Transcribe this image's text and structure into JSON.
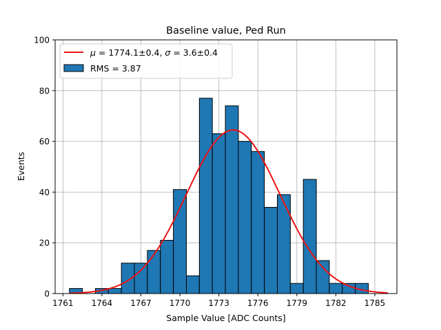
{
  "chart_data": {
    "type": "bar",
    "title": "Baseline value, Ped Run",
    "xlabel": "Sample Value [ADC Counts]",
    "ylabel": "Events",
    "xlim": [
      1760.4,
      1786.7
    ],
    "ylim": [
      0,
      100
    ],
    "xticks": [
      1761,
      1764,
      1767,
      1770,
      1773,
      1776,
      1779,
      1782,
      1785
    ],
    "yticks": [
      0,
      20,
      40,
      60,
      80,
      100
    ],
    "grid": true,
    "legend_position": "top-left",
    "bin_width": 1,
    "bins": [
      {
        "x": 1762,
        "count": 2
      },
      {
        "x": 1763,
        "count": 0
      },
      {
        "x": 1764,
        "count": 2
      },
      {
        "x": 1765,
        "count": 2
      },
      {
        "x": 1766,
        "count": 12
      },
      {
        "x": 1767,
        "count": 12
      },
      {
        "x": 1768,
        "count": 17
      },
      {
        "x": 1769,
        "count": 21
      },
      {
        "x": 1770,
        "count": 41
      },
      {
        "x": 1771,
        "count": 7
      },
      {
        "x": 1772,
        "count": 77
      },
      {
        "x": 1773,
        "count": 63
      },
      {
        "x": 1774,
        "count": 74
      },
      {
        "x": 1775,
        "count": 60
      },
      {
        "x": 1776,
        "count": 56
      },
      {
        "x": 1777,
        "count": 34
      },
      {
        "x": 1778,
        "count": 39
      },
      {
        "x": 1779,
        "count": 4
      },
      {
        "x": 1780,
        "count": 45
      },
      {
        "x": 1781,
        "count": 13
      },
      {
        "x": 1782,
        "count": 4
      },
      {
        "x": 1783,
        "count": 4
      },
      {
        "x": 1784,
        "count": 4
      }
    ],
    "fit": {
      "mu": 1774.1,
      "sigma": 3.6,
      "peak": 64.5,
      "x_range": [
        1761.5,
        1786
      ]
    },
    "series": [
      {
        "name": "$\\mu = 1774.1 \\pm 0.4$, $\\sigma = 3.6 \\pm 0.4$",
        "type": "line",
        "color": "#e41a1c"
      },
      {
        "name": "RMS = 3.87",
        "type": "bar",
        "color": "#1f77b4"
      }
    ],
    "legend": {
      "fit_label_parts": [
        "μ",
        " = 1774.1±0.4, ",
        "σ",
        " = 3.6±0.4"
      ],
      "rms_label": "RMS = 3.87"
    },
    "colors": {
      "bar_fill": "#1f77b4",
      "bar_edge": "#000000",
      "fit_line": "#ee1111",
      "grid": "#b0b0b0"
    }
  }
}
